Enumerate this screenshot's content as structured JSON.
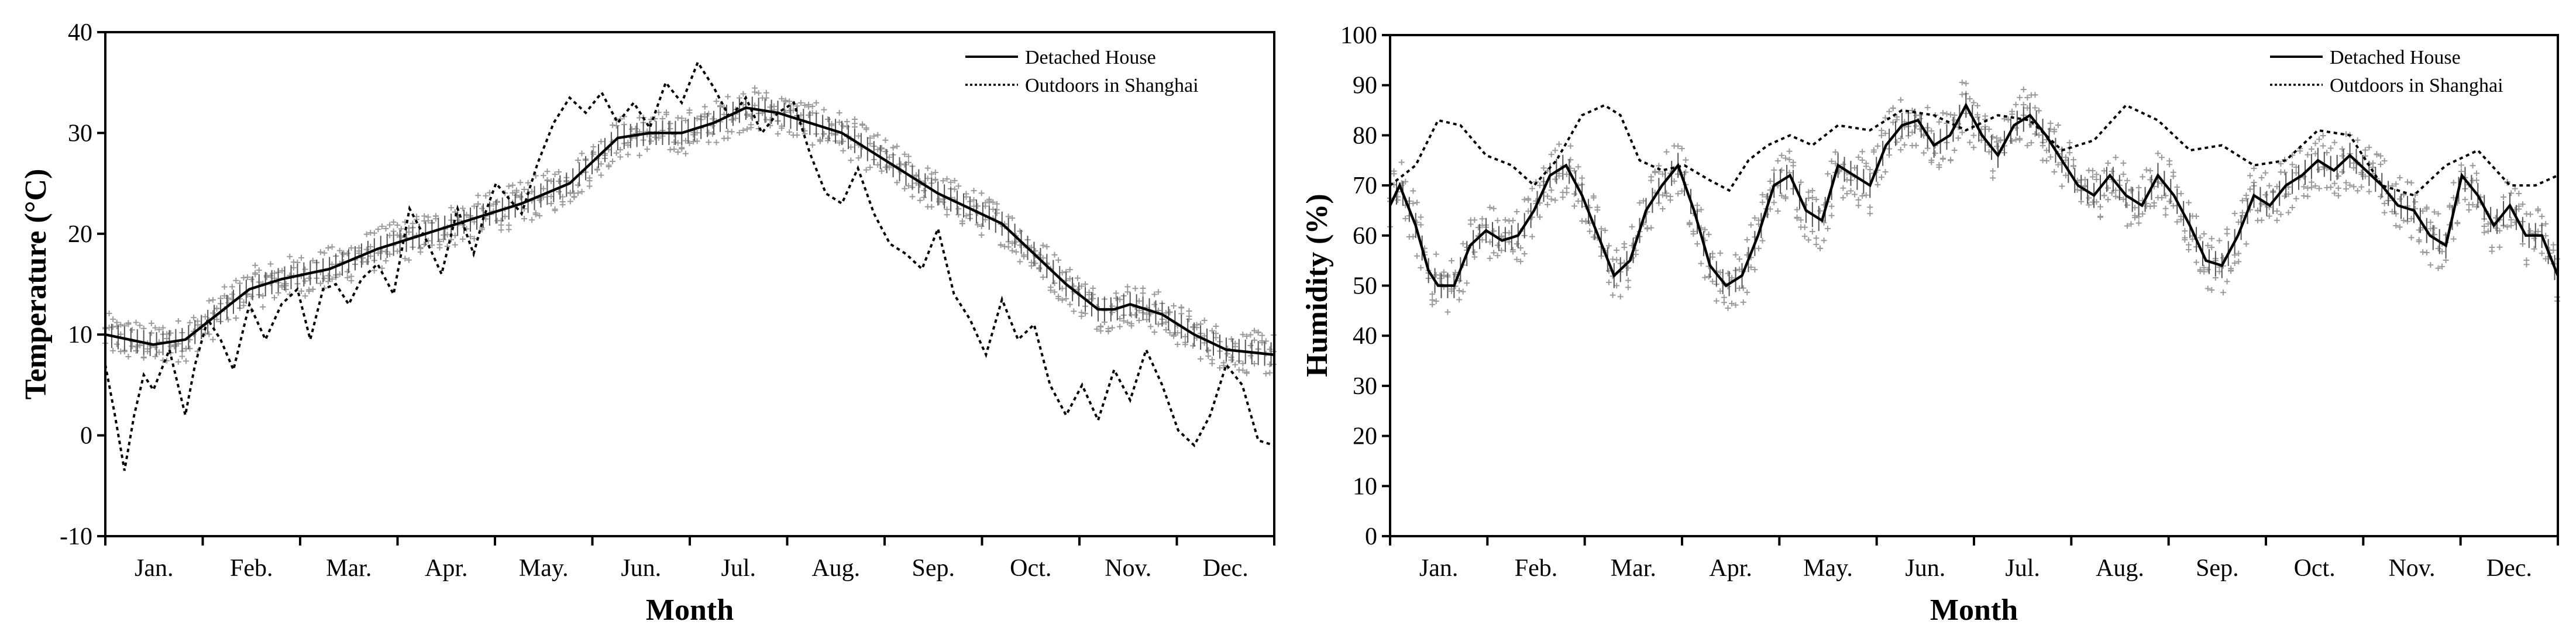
{
  "chart_data": [
    {
      "type": "line",
      "id": "temperature",
      "xlabel": "Month",
      "ylabel": "Temperature (°C)",
      "ylim": [
        -10,
        40
      ],
      "yticks": [
        "-10",
        "0",
        "10",
        "20",
        "30",
        "40"
      ],
      "categories": [
        "Jan.",
        "Feb.",
        "Mar.",
        "Apr.",
        "May.",
        "Jun.",
        "Jul.",
        "Aug.",
        "Sep.",
        "Oct.",
        "Nov.",
        "Dec."
      ],
      "legend": {
        "position": "top-right",
        "entries": [
          "Detached House",
          "Outdoors in Shanghai"
        ]
      },
      "series": [
        {
          "name": "Detached House",
          "style": "solid",
          "x": [
            0,
            15,
            25,
            35,
            45,
            55,
            70,
            85,
            100,
            115,
            130,
            145,
            160,
            170,
            180,
            190,
            200,
            210,
            220,
            230,
            240,
            250,
            260,
            270,
            280,
            290,
            300,
            310,
            315,
            320,
            330,
            340,
            350,
            365
          ],
          "values": [
            10,
            9,
            9.5,
            12,
            14.5,
            15.5,
            16.5,
            18.5,
            20,
            21.5,
            23,
            25,
            29.5,
            30,
            30,
            31,
            32.5,
            32,
            31,
            30,
            28,
            26,
            24,
            22.5,
            21,
            18,
            15,
            12.5,
            12.5,
            13,
            12,
            10,
            8.5,
            8
          ]
        },
        {
          "name": "Outdoors in Shanghai",
          "style": "dotted",
          "x": [
            0,
            3,
            6,
            9,
            12,
            15,
            20,
            25,
            28,
            32,
            36,
            40,
            45,
            50,
            55,
            60,
            64,
            68,
            72,
            76,
            80,
            85,
            90,
            95,
            100,
            105,
            110,
            115,
            118,
            122,
            126,
            130,
            135,
            140,
            145,
            150,
            155,
            160,
            165,
            170,
            175,
            180,
            185,
            190,
            195,
            200,
            205,
            210,
            215,
            220,
            225,
            230,
            235,
            240,
            245,
            250,
            255,
            260,
            265,
            270,
            275,
            280,
            285,
            290,
            295,
            300,
            305,
            310,
            315,
            320,
            325,
            330,
            335,
            340,
            345,
            350,
            355,
            360,
            365
          ],
          "values": [
            7,
            2,
            -3.5,
            2,
            6,
            4.5,
            8.5,
            2,
            7,
            11.5,
            9.5,
            6.5,
            13,
            9.5,
            13,
            14.5,
            9.5,
            14.5,
            15,
            13,
            15.5,
            17,
            14,
            22.5,
            19.5,
            16,
            22.5,
            18,
            21.5,
            25,
            23.5,
            22,
            27,
            31,
            33.5,
            32,
            34,
            31,
            33,
            30.5,
            35,
            33,
            37,
            34.5,
            31.5,
            33.5,
            30,
            32,
            33,
            28,
            24,
            23,
            26.5,
            22,
            19,
            18,
            16.5,
            20.5,
            14,
            11.5,
            8,
            13.5,
            9.5,
            11,
            5,
            2,
            5,
            1.5,
            6.5,
            3.5,
            8.5,
            5,
            0.5,
            -1,
            2,
            7,
            5,
            -0.5,
            -1
          ]
        }
      ]
    },
    {
      "type": "line",
      "id": "humidity",
      "xlabel": "Month",
      "ylabel": "Humidity (%)",
      "ylim": [
        0,
        100
      ],
      "yticks": [
        "0",
        "10",
        "20",
        "30",
        "40",
        "50",
        "60",
        "70",
        "80",
        "90",
        "100"
      ],
      "categories": [
        "Jan.",
        "Feb.",
        "Mar.",
        "Apr.",
        "May.",
        "Jun.",
        "Jul.",
        "Aug.",
        "Sep.",
        "Oct.",
        "Nov.",
        "Dec."
      ],
      "legend": {
        "position": "top-right",
        "entries": [
          "Detached House",
          "Outdoors in Shanghai"
        ]
      },
      "series": [
        {
          "name": "Detached House",
          "style": "solid",
          "x": [
            0,
            3,
            8,
            12,
            15,
            20,
            25,
            30,
            35,
            40,
            45,
            50,
            55,
            60,
            65,
            70,
            75,
            80,
            85,
            90,
            95,
            100,
            105,
            110,
            115,
            120,
            125,
            130,
            135,
            140,
            145,
            150,
            155,
            160,
            165,
            170,
            175,
            180,
            185,
            190,
            195,
            200,
            205,
            210,
            215,
            220,
            225,
            230,
            235,
            240,
            245,
            250,
            255,
            260,
            265,
            270,
            275,
            280,
            285,
            290,
            295,
            300,
            305,
            310,
            315,
            320,
            325,
            330,
            335,
            340,
            345,
            350,
            355,
            360,
            365
          ],
          "values": [
            66,
            70,
            62,
            53,
            50,
            50,
            58,
            61,
            59,
            60,
            65,
            72,
            74,
            68,
            60,
            52,
            55,
            65,
            70,
            74,
            65,
            54,
            50,
            52,
            60,
            70,
            72,
            65,
            63,
            74,
            72,
            70,
            78,
            82,
            83,
            78,
            80,
            86,
            80,
            76,
            82,
            84,
            80,
            75,
            70,
            68,
            72,
            68,
            66,
            72,
            68,
            62,
            55,
            54,
            60,
            68,
            66,
            70,
            72,
            75,
            73,
            76,
            73,
            70,
            66,
            65,
            60,
            58,
            72,
            68,
            62,
            66,
            60,
            60,
            52
          ]
        },
        {
          "name": "Outdoors in Shanghai",
          "style": "dotted",
          "x": [
            0,
            8,
            15,
            22,
            30,
            38,
            45,
            52,
            60,
            67,
            72,
            78,
            85,
            92,
            100,
            106,
            112,
            118,
            125,
            132,
            140,
            150,
            160,
            170,
            180,
            190,
            200,
            210,
            220,
            230,
            240,
            250,
            260,
            270,
            280,
            290,
            300,
            310,
            320,
            330,
            340,
            350,
            358,
            365
          ],
          "values": [
            70,
            74,
            83,
            82,
            76,
            74,
            70,
            75,
            84,
            86,
            84,
            75,
            73,
            74,
            71,
            69,
            75,
            78,
            80,
            78,
            82,
            81,
            85,
            84,
            81,
            84,
            83,
            77,
            79,
            86,
            83,
            77,
            78,
            74,
            75,
            81,
            80,
            70,
            68,
            74,
            77,
            70,
            70,
            72
          ]
        }
      ]
    }
  ]
}
